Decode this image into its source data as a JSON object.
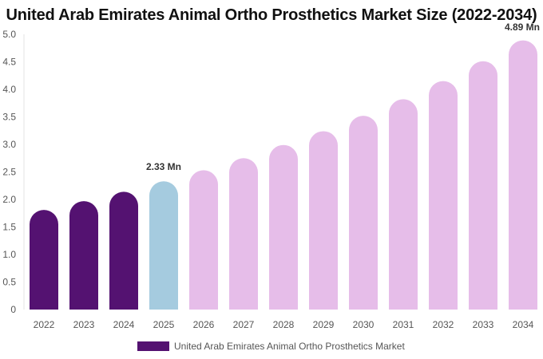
{
  "title": "United Arab Emirates Animal Ortho Prosthetics Market Size (2022-2034)",
  "colors": {
    "historical": "#541271",
    "base": "#a5cbdf",
    "forecast": "#e6bde9",
    "axis_text": "#555555",
    "label_text": "#333333"
  },
  "legend": {
    "label": "United Arab Emirates Animal Ortho Prosthetics Market"
  },
  "chart_data": {
    "type": "bar",
    "title": "United Arab Emirates Animal Ortho Prosthetics Market Size (2022-2034)",
    "xlabel": "",
    "ylabel": "",
    "ylim": [
      0,
      5
    ],
    "yticks": [
      "0",
      "0.5",
      "1.0",
      "1.5",
      "2.0",
      "2.5",
      "3.0",
      "3.5",
      "4.0",
      "4.5",
      "5.0"
    ],
    "grid": false,
    "legend_position": "bottom",
    "categories": [
      "2022",
      "2023",
      "2024",
      "2025",
      "2026",
      "2027",
      "2028",
      "2029",
      "2030",
      "2031",
      "2032",
      "2033",
      "2034"
    ],
    "series": [
      {
        "name": "United Arab Emirates Animal Ortho Prosthetics Market",
        "values": [
          1.81,
          1.97,
          2.14,
          2.33,
          2.53,
          2.75,
          2.99,
          3.24,
          3.52,
          3.82,
          4.15,
          4.51,
          4.89
        ]
      }
    ],
    "bar_colors": [
      "historical",
      "historical",
      "historical",
      "base",
      "forecast",
      "forecast",
      "forecast",
      "forecast",
      "forecast",
      "forecast",
      "forecast",
      "forecast",
      "forecast"
    ],
    "data_labels": [
      {
        "category": "2025",
        "text": "2.33 Mn"
      },
      {
        "category": "2034",
        "text": "4.89 Mn"
      }
    ]
  }
}
